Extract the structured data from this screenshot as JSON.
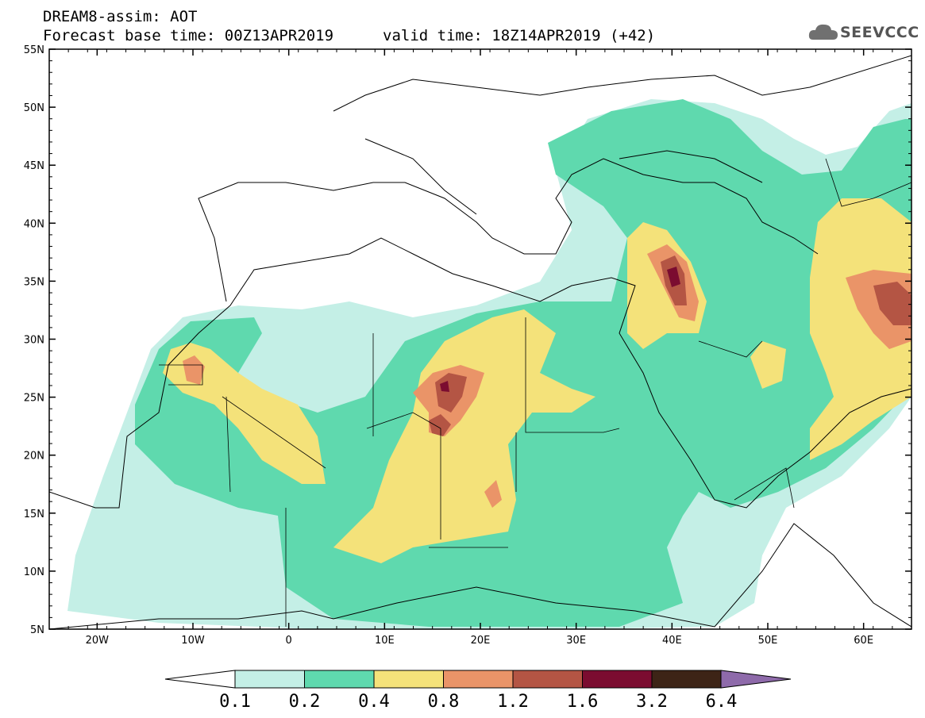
{
  "header": {
    "title": "DREAM8-assim: AOT",
    "base_time": "Forecast base time: 00Z13APR2019",
    "valid_time": "valid time: 18Z14APR2019 (+42)",
    "logo_text": "SEEVCCC"
  },
  "map": {
    "lon_range": [
      -25,
      65
    ],
    "lat_range": [
      5,
      55
    ],
    "lon_ticks": [
      {
        "value": -20,
        "label": "20W"
      },
      {
        "value": -10,
        "label": "10W"
      },
      {
        "value": 0,
        "label": "0"
      },
      {
        "value": 10,
        "label": "10E"
      },
      {
        "value": 20,
        "label": "20E"
      },
      {
        "value": 30,
        "label": "30E"
      },
      {
        "value": 40,
        "label": "40E"
      },
      {
        "value": 50,
        "label": "50E"
      },
      {
        "value": 60,
        "label": "60E"
      }
    ],
    "lat_ticks": [
      {
        "value": 55,
        "label": "55N"
      },
      {
        "value": 50,
        "label": "50N"
      },
      {
        "value": 45,
        "label": "45N"
      },
      {
        "value": 40,
        "label": "40N"
      },
      {
        "value": 35,
        "label": "35N"
      },
      {
        "value": 30,
        "label": "30N"
      },
      {
        "value": 25,
        "label": "25N"
      },
      {
        "value": 20,
        "label": "20N"
      },
      {
        "value": 15,
        "label": "15N"
      },
      {
        "value": 10,
        "label": "10N"
      },
      {
        "value": 5,
        "label": "5N"
      }
    ]
  },
  "colorbar": {
    "levels": [
      "0.1",
      "0.2",
      "0.4",
      "0.8",
      "1.2",
      "1.6",
      "3.2",
      "6.4"
    ],
    "colors": [
      "#ffffff",
      "#c4efe6",
      "#5fd9ae",
      "#f4e27a",
      "#ea9468",
      "#b45544",
      "#7b0c30",
      "#3d2416",
      "#8e6aaa"
    ]
  }
}
